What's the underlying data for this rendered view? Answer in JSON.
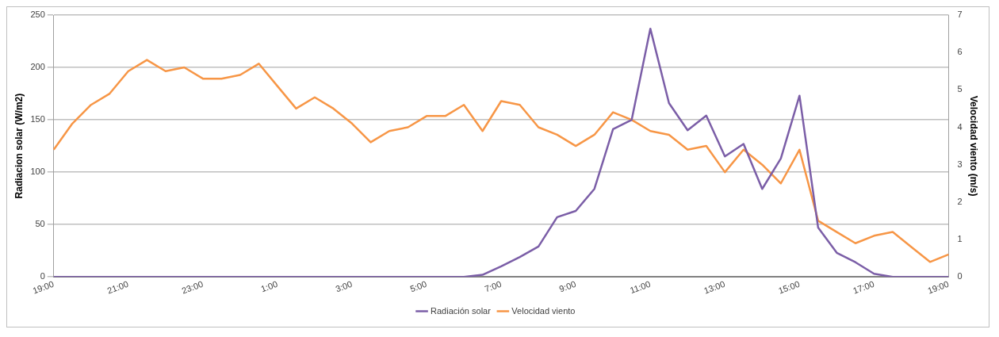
{
  "chart_data": {
    "type": "line",
    "ylabel": "Radiacion solar (W/m2)",
    "y2label": "Velocidad viento (m/s)",
    "categories": [
      "19:00",
      null,
      null,
      null,
      "21:00",
      null,
      null,
      null,
      "23:00",
      null,
      null,
      null,
      "1:00",
      null,
      null,
      null,
      "3:00",
      null,
      null,
      null,
      "5:00",
      null,
      null,
      null,
      "7:00",
      null,
      null,
      null,
      "9:00",
      null,
      null,
      null,
      "11:00",
      null,
      null,
      null,
      "13:00",
      null,
      null,
      null,
      "15:00",
      null,
      null,
      null,
      "17:00",
      null,
      null,
      null,
      "19:00"
    ],
    "series": [
      {
        "name": "Radiación solar",
        "color": "#7b5ea7",
        "values": [
          0,
          0,
          0,
          0,
          0,
          0,
          0,
          0,
          0,
          0,
          0,
          0,
          0,
          0,
          0,
          0,
          0,
          0,
          0,
          0,
          0,
          0,
          0,
          2,
          10,
          19,
          29,
          57,
          63,
          84,
          141,
          150,
          237,
          166,
          140,
          154,
          115,
          127,
          84,
          113,
          173,
          47,
          23,
          14,
          3,
          0,
          0,
          0,
          0
        ]
      },
      {
        "name": "Velocidad viento",
        "color": "#f79646",
        "axis": "y2",
        "values": [
          3.4,
          4.1,
          4.6,
          4.9,
          5.5,
          5.8,
          5.5,
          5.6,
          5.3,
          5.3,
          5.4,
          5.7,
          5.1,
          4.5,
          4.8,
          4.5,
          4.1,
          3.6,
          3.9,
          4.0,
          4.3,
          4.3,
          4.6,
          3.9,
          4.7,
          4.6,
          4.0,
          3.8,
          3.5,
          3.8,
          4.4,
          4.2,
          3.9,
          3.8,
          3.4,
          3.5,
          2.8,
          3.4,
          3.0,
          2.5,
          3.4,
          1.5,
          1.2,
          0.9,
          1.1,
          1.2,
          0.8,
          0.4,
          0.6
        ]
      }
    ],
    "ylim": [
      0,
      250
    ],
    "yticks": [
      0,
      50,
      100,
      150,
      200,
      250
    ],
    "y2lim": [
      0,
      7
    ],
    "y2ticks": [
      0,
      1,
      2,
      3,
      4,
      5,
      6,
      7
    ],
    "grid": "y",
    "legend": "bottom",
    "marker": "none",
    "line_style": "solid"
  }
}
